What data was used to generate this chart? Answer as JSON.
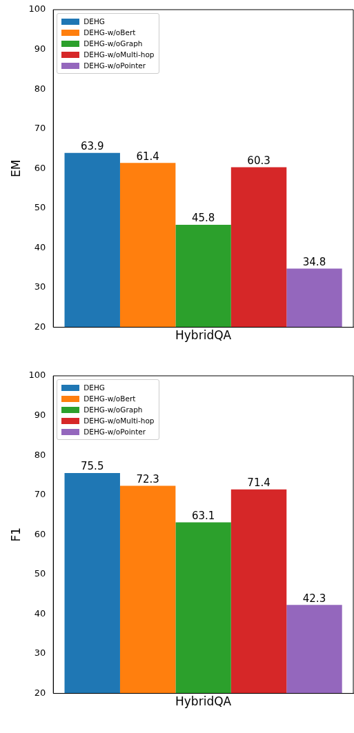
{
  "chart_data": [
    {
      "type": "bar",
      "ylabel": "EM",
      "categories": [
        "HybridQA"
      ],
      "ylim": [
        20,
        100
      ],
      "yticks": [
        20,
        30,
        40,
        50,
        60,
        70,
        80,
        90,
        100
      ],
      "grid": false,
      "legend": "top left",
      "data_labels": true,
      "series": [
        {
          "name": "DEHG",
          "color": "#1f77b4",
          "values": [
            63.9
          ]
        },
        {
          "name": "DEHG-w/oBert",
          "color": "#ff7f0e",
          "values": [
            61.4
          ]
        },
        {
          "name": "DEHG-w/oGraph",
          "color": "#2ca02c",
          "values": [
            45.8
          ]
        },
        {
          "name": "DEHG-w/oMulti-hop",
          "color": "#d62728",
          "values": [
            60.3
          ]
        },
        {
          "name": "DEHG-w/oPointer",
          "color": "#9467bd",
          "values": [
            34.8
          ]
        }
      ]
    },
    {
      "type": "bar",
      "ylabel": "F1",
      "categories": [
        "HybridQA"
      ],
      "ylim": [
        20,
        100
      ],
      "yticks": [
        20,
        30,
        40,
        50,
        60,
        70,
        80,
        90,
        100
      ],
      "grid": false,
      "legend": "top left",
      "data_labels": true,
      "series": [
        {
          "name": "DEHG",
          "color": "#1f77b4",
          "values": [
            75.5
          ]
        },
        {
          "name": "DEHG-w/oBert",
          "color": "#ff7f0e",
          "values": [
            72.3
          ]
        },
        {
          "name": "DEHG-w/oGraph",
          "color": "#2ca02c",
          "values": [
            63.1
          ]
        },
        {
          "name": "DEHG-w/oMulti-hop",
          "color": "#d62728",
          "values": [
            71.4
          ]
        },
        {
          "name": "DEHG-w/oPointer",
          "color": "#9467bd",
          "values": [
            42.3
          ]
        }
      ]
    }
  ]
}
